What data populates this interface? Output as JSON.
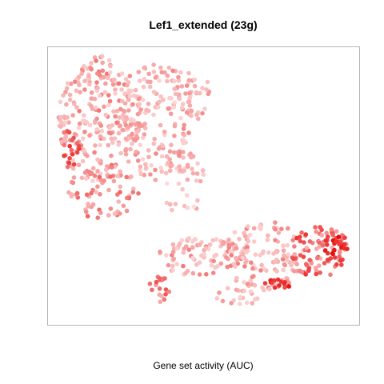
{
  "chart_data": {
    "type": "scatter",
    "title": "Lef1_extended (23g)",
    "xlabel": "Gene set activity (AUC)",
    "ylabel": "",
    "colors": {
      "low": "#fff0f0",
      "mid": "#f6a0a0",
      "high": "#e60000",
      "frame": "#b4b4b4"
    },
    "grid": false,
    "legend": "none",
    "axes_ticks": false
  }
}
